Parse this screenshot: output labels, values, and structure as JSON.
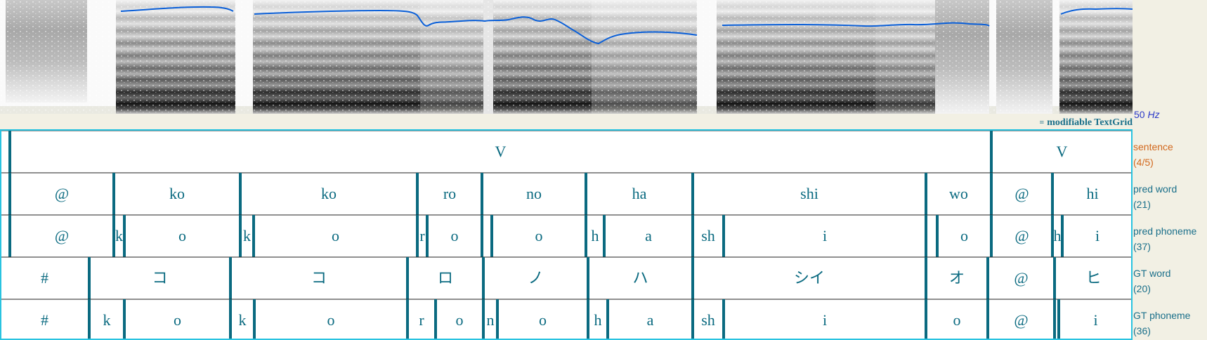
{
  "textgrid_label": "modifiable TextGrid",
  "textgrid_icon": "textgrid-icon",
  "pitch_floor": {
    "value": "50",
    "unit": "Hz"
  },
  "colors": {
    "accent": "#1a6f8a",
    "selected_tier": "#d2691e",
    "boundary": "#0a6a80",
    "pitch": "#0a5fd8",
    "frame": "#29c3e0",
    "hz_text": "#2b39c8"
  },
  "tiers": [
    {
      "name": "sentence",
      "count": "(4/5)",
      "selected": true,
      "intervals": [
        {
          "text": "",
          "start": 0,
          "end": 14
        },
        {
          "text": "V",
          "start": 14,
          "end": 1411
        },
        {
          "text": "V",
          "start": 1411,
          "end": 1612
        }
      ]
    },
    {
      "name": "pred word",
      "count": "(21)",
      "selected": false,
      "intervals": [
        {
          "text": "",
          "start": 0,
          "end": 14
        },
        {
          "text": "@",
          "start": 14,
          "end": 162
        },
        {
          "text": "ko",
          "start": 162,
          "end": 342
        },
        {
          "text": "ko",
          "start": 342,
          "end": 594
        },
        {
          "text": "ro",
          "start": 594,
          "end": 686
        },
        {
          "text": "no",
          "start": 686,
          "end": 834
        },
        {
          "text": "ha",
          "start": 834,
          "end": 986
        },
        {
          "text": "shi",
          "start": 986,
          "end": 1318
        },
        {
          "text": "wo",
          "start": 1318,
          "end": 1411
        },
        {
          "text": "@",
          "start": 1411,
          "end": 1498
        },
        {
          "text": "hi",
          "start": 1498,
          "end": 1612
        }
      ]
    },
    {
      "name": "pred phoneme",
      "count": "(37)",
      "selected": false,
      "intervals": [
        {
          "text": "",
          "start": 0,
          "end": 14
        },
        {
          "text": "@",
          "start": 14,
          "end": 162
        },
        {
          "text": "k",
          "start": 162,
          "end": 177
        },
        {
          "text": "o",
          "start": 177,
          "end": 342
        },
        {
          "text": "k",
          "start": 342,
          "end": 361
        },
        {
          "text": "o",
          "start": 361,
          "end": 594
        },
        {
          "text": "r",
          "start": 594,
          "end": 608
        },
        {
          "text": "o",
          "start": 608,
          "end": 686
        },
        {
          "text": "",
          "start": 686,
          "end": 700
        },
        {
          "text": "o",
          "start": 700,
          "end": 834
        },
        {
          "text": "h",
          "start": 834,
          "end": 860
        },
        {
          "text": "a",
          "start": 860,
          "end": 986
        },
        {
          "text": "sh",
          "start": 986,
          "end": 1030
        },
        {
          "text": "i",
          "start": 1030,
          "end": 1318
        },
        {
          "text": "",
          "start": 1318,
          "end": 1334
        },
        {
          "text": "o",
          "start": 1334,
          "end": 1411
        },
        {
          "text": "@",
          "start": 1411,
          "end": 1498
        },
        {
          "text": "h",
          "start": 1498,
          "end": 1512
        },
        {
          "text": "i",
          "start": 1512,
          "end": 1612
        }
      ]
    },
    {
      "name": "GT word",
      "count": "(20)",
      "selected": false,
      "intervals": [
        {
          "text": "#",
          "start": 0,
          "end": 127
        },
        {
          "text": "コ",
          "start": 127,
          "end": 328
        },
        {
          "text": "コ",
          "start": 328,
          "end": 580
        },
        {
          "text": "ロ",
          "start": 580,
          "end": 688
        },
        {
          "text": "ノ",
          "start": 688,
          "end": 837
        },
        {
          "text": "ハ",
          "start": 837,
          "end": 986
        },
        {
          "text": "シイ",
          "start": 986,
          "end": 1318
        },
        {
          "text": "オ",
          "start": 1318,
          "end": 1406
        },
        {
          "text": "@",
          "start": 1406,
          "end": 1501
        },
        {
          "text": "ヒ",
          "start": 1501,
          "end": 1612
        }
      ]
    },
    {
      "name": "GT phoneme",
      "count": "(36)",
      "selected": false,
      "intervals": [
        {
          "text": "#",
          "start": 0,
          "end": 127
        },
        {
          "text": "k",
          "start": 127,
          "end": 177
        },
        {
          "text": "o",
          "start": 177,
          "end": 328
        },
        {
          "text": "k",
          "start": 328,
          "end": 362
        },
        {
          "text": "o",
          "start": 362,
          "end": 580
        },
        {
          "text": "r",
          "start": 580,
          "end": 620
        },
        {
          "text": "o",
          "start": 620,
          "end": 688
        },
        {
          "text": "n",
          "start": 688,
          "end": 708
        },
        {
          "text": "o",
          "start": 708,
          "end": 837
        },
        {
          "text": "h",
          "start": 837,
          "end": 865
        },
        {
          "text": "a",
          "start": 865,
          "end": 986
        },
        {
          "text": "sh",
          "start": 986,
          "end": 1030
        },
        {
          "text": "i",
          "start": 1030,
          "end": 1318
        },
        {
          "text": "o",
          "start": 1318,
          "end": 1406
        },
        {
          "text": "@",
          "start": 1406,
          "end": 1501
        },
        {
          "text": "",
          "start": 1501,
          "end": 1507
        },
        {
          "text": "i",
          "start": 1507,
          "end": 1612
        }
      ]
    }
  ]
}
